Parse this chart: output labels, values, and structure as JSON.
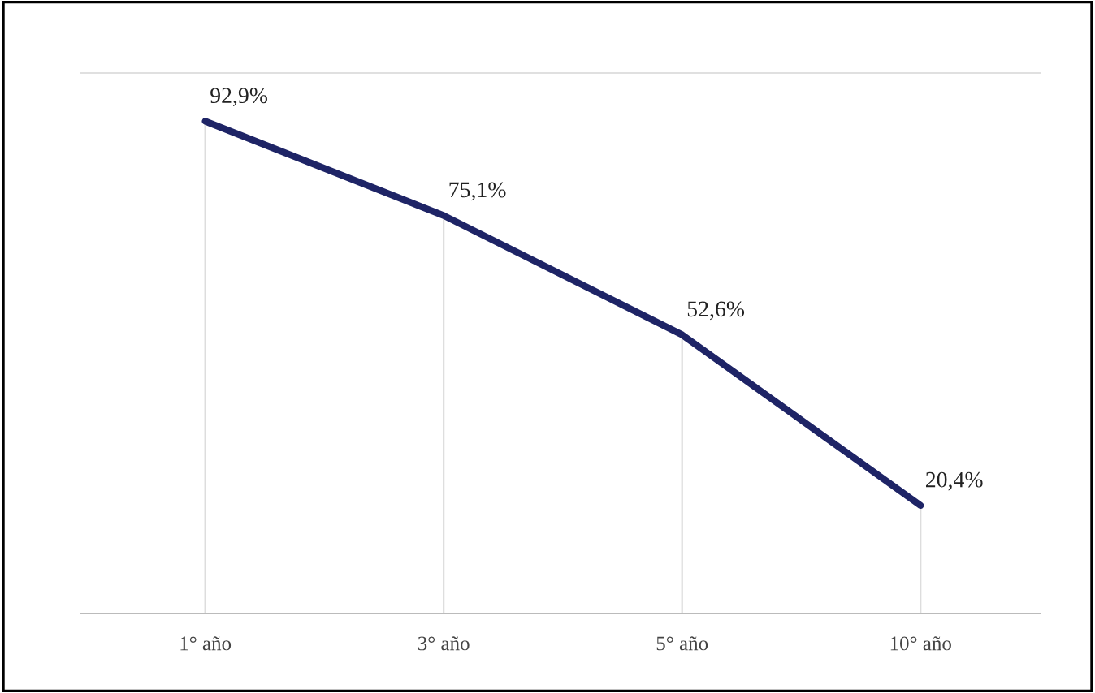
{
  "chart_data": {
    "type": "line",
    "categories": [
      "1° año",
      "3° año",
      "5° año",
      "10° año"
    ],
    "series": [
      {
        "color": "#1e2466",
        "values": [
          92.9,
          75.1,
          52.6,
          20.4
        ],
        "value_labels": [
          "92,9%",
          "75,1%",
          "52,6%",
          "20,4%"
        ]
      }
    ],
    "ylim": [
      0,
      102
    ],
    "tick_labels": "x",
    "grid": "x",
    "legend": false,
    "marker": "none",
    "line_style": "solid"
  }
}
